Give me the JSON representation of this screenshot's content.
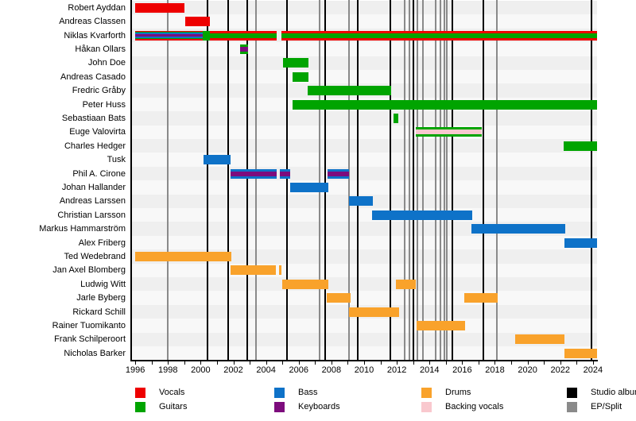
{
  "chart_data": {
    "type": "timeline",
    "title": "",
    "xlabel": "",
    "ylabel": "",
    "x_axis": {
      "min": 1995.75,
      "max": 2024.25,
      "tick_labels": [
        1996,
        1998,
        2000,
        2002,
        2004,
        2006,
        2008,
        2010,
        2012,
        2014,
        2016,
        2018,
        2020,
        2022,
        2024
      ],
      "minor_tick_step": 1,
      "minor_tick_start": 1996,
      "minor_tick_end": 2024
    },
    "colors": {
      "vocals": "#EE0000",
      "guitars": "#00A400",
      "bass": "#0E72C8",
      "keyboards": "#7D0C7D",
      "drums": "#F9A22B",
      "backing_vocals": "#F9C8CE",
      "studio_album": "#000000",
      "ep_split": "#8A8A8A"
    },
    "events": {
      "studio_album": {
        "label": "Studio album",
        "years": [
          2000.4,
          2001.7,
          2002.85,
          2005.3,
          2007.6,
          2009.6,
          2011.6,
          2013.0,
          2015.4,
          2017.3,
          2023.9
        ]
      },
      "ep_split": {
        "label": "EP/Split",
        "years": [
          1998.0,
          2003.4,
          2007.3,
          2009.1,
          2012.5,
          2012.75,
          2013.25,
          2013.6,
          2014.4,
          2014.65,
          2014.9,
          2015.05,
          2018.1
        ]
      }
    },
    "members": [
      {
        "name": "Robert Ayddan",
        "segments": [
          {
            "start": 1996.0,
            "end": 1999.0,
            "roles": [
              "vocals"
            ]
          }
        ]
      },
      {
        "name": "Andreas Classen",
        "segments": [
          {
            "start": 1999.05,
            "end": 2000.55,
            "roles": [
              "vocals"
            ]
          }
        ]
      },
      {
        "name": "Niklas Kvarforth",
        "segments": [
          {
            "start": 1996.0,
            "end": 2000.15,
            "roles": [
              "vocals",
              "guitars",
              "bass",
              "keyboards"
            ]
          },
          {
            "start": 2000.15,
            "end": 2000.55,
            "roles": [
              "guitars"
            ]
          },
          {
            "start": 2000.55,
            "end": 2004.65,
            "roles": [
              "vocals",
              "guitars"
            ]
          },
          {
            "start": 2004.95,
            "end": 2024.25,
            "roles": [
              "vocals",
              "guitars"
            ]
          }
        ]
      },
      {
        "name": "Håkan Ollars",
        "segments": [
          {
            "start": 2002.4,
            "end": 2002.9,
            "roles": [
              "guitars",
              "keyboards"
            ]
          }
        ]
      },
      {
        "name": "John Doe",
        "segments": [
          {
            "start": 2005.05,
            "end": 2006.6,
            "roles": [
              "guitars"
            ]
          }
        ]
      },
      {
        "name": "Andreas Casado",
        "segments": [
          {
            "start": 2005.6,
            "end": 2006.6,
            "roles": [
              "guitars"
            ]
          }
        ]
      },
      {
        "name": "Fredric Gråby",
        "segments": [
          {
            "start": 2006.55,
            "end": 2011.65,
            "roles": [
              "guitars"
            ]
          }
        ]
      },
      {
        "name": "Peter Huss",
        "segments": [
          {
            "start": 2005.6,
            "end": 2024.25,
            "roles": [
              "guitars"
            ]
          }
        ]
      },
      {
        "name": "Sebastiaan Bats",
        "segments": [
          {
            "start": 2011.8,
            "end": 2012.1,
            "roles": [
              "guitars"
            ]
          }
        ]
      },
      {
        "name": "Euge Valovirta",
        "segments": [
          {
            "start": 2013.15,
            "end": 2017.2,
            "roles": [
              "guitars",
              "backing_vocals"
            ]
          }
        ]
      },
      {
        "name": "Charles Hedger",
        "segments": [
          {
            "start": 2022.2,
            "end": 2024.25,
            "roles": [
              "guitars"
            ]
          }
        ]
      },
      {
        "name": "Tusk",
        "segments": [
          {
            "start": 2000.2,
            "end": 2001.85,
            "roles": [
              "bass"
            ]
          }
        ]
      },
      {
        "name": "Phil A. Cirone",
        "segments": [
          {
            "start": 2001.85,
            "end": 2004.65,
            "roles": [
              "bass",
              "keyboards"
            ]
          },
          {
            "start": 2004.85,
            "end": 2005.5,
            "roles": [
              "bass",
              "keyboards"
            ]
          },
          {
            "start": 2007.75,
            "end": 2009.1,
            "roles": [
              "bass",
              "keyboards"
            ]
          }
        ]
      },
      {
        "name": "Johan Hallander",
        "segments": [
          {
            "start": 2005.5,
            "end": 2007.8,
            "roles": [
              "bass"
            ]
          }
        ]
      },
      {
        "name": "Andreas Larssen",
        "segments": [
          {
            "start": 2009.1,
            "end": 2010.55,
            "roles": [
              "bass"
            ]
          }
        ]
      },
      {
        "name": "Christian Larsson",
        "segments": [
          {
            "start": 2010.5,
            "end": 2016.6,
            "roles": [
              "bass"
            ]
          }
        ]
      },
      {
        "name": "Markus Hammarström",
        "segments": [
          {
            "start": 2016.55,
            "end": 2022.3,
            "roles": [
              "bass"
            ]
          }
        ]
      },
      {
        "name": "Alex Friberg",
        "segments": [
          {
            "start": 2022.25,
            "end": 2024.25,
            "roles": [
              "bass"
            ]
          }
        ]
      },
      {
        "name": "Ted Wedebrand",
        "segments": [
          {
            "start": 1996.0,
            "end": 2001.9,
            "roles": [
              "drums"
            ]
          }
        ]
      },
      {
        "name": "Jan Axel Blomberg",
        "segments": [
          {
            "start": 2001.85,
            "end": 2004.6,
            "roles": [
              "drums"
            ]
          },
          {
            "start": 2004.8,
            "end": 2004.95,
            "roles": [
              "drums"
            ]
          }
        ]
      },
      {
        "name": "Ludwig Witt",
        "segments": [
          {
            "start": 2005.0,
            "end": 2007.8,
            "roles": [
              "drums"
            ]
          },
          {
            "start": 2011.95,
            "end": 2013.15,
            "roles": [
              "drums"
            ]
          }
        ]
      },
      {
        "name": "Jarle Byberg",
        "segments": [
          {
            "start": 2007.7,
            "end": 2009.15,
            "roles": [
              "drums"
            ]
          },
          {
            "start": 2016.15,
            "end": 2018.15,
            "roles": [
              "drums"
            ]
          }
        ]
      },
      {
        "name": "Rickard Schill",
        "segments": [
          {
            "start": 2009.1,
            "end": 2012.15,
            "roles": [
              "drums"
            ]
          }
        ]
      },
      {
        "name": "Rainer Tuomikanto",
        "segments": [
          {
            "start": 2013.2,
            "end": 2016.2,
            "roles": [
              "drums"
            ]
          }
        ]
      },
      {
        "name": "Frank Schilperoort",
        "segments": [
          {
            "start": 2019.25,
            "end": 2022.25,
            "roles": [
              "drums"
            ]
          }
        ]
      },
      {
        "name": "Nicholas Barker",
        "segments": [
          {
            "start": 2022.25,
            "end": 2024.25,
            "roles": [
              "drums"
            ]
          }
        ]
      }
    ],
    "legend_position": "bottom"
  },
  "legend": {
    "columns": [
      [
        {
          "label": "Vocals",
          "color_key": "vocals"
        },
        {
          "label": "Guitars",
          "color_key": "guitars"
        }
      ],
      [
        {
          "label": "Bass",
          "color_key": "bass"
        },
        {
          "label": "Keyboards",
          "color_key": "keyboards"
        }
      ],
      [
        {
          "label": "Drums",
          "color_key": "drums"
        },
        {
          "label": "Backing vocals",
          "color_key": "backing_vocals"
        }
      ],
      [
        {
          "label": "Studio album",
          "color_key": "studio_album"
        },
        {
          "label": "EP/Split",
          "color_key": "ep_split"
        }
      ]
    ]
  }
}
